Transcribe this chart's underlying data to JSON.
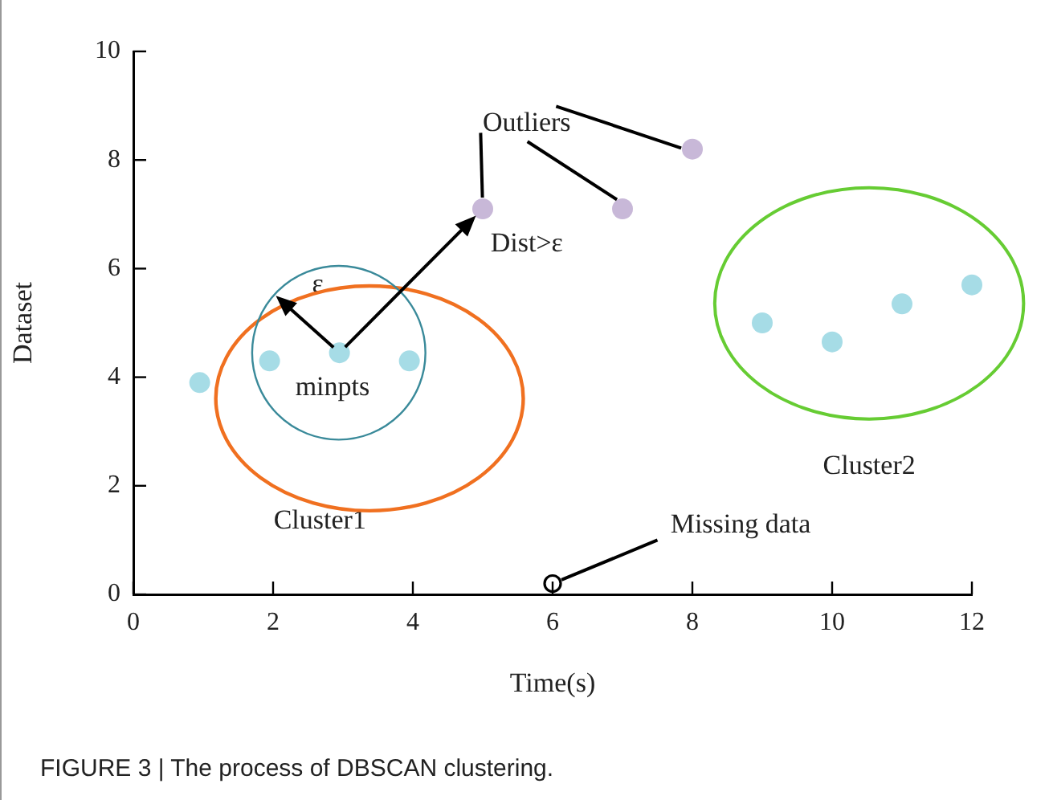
{
  "chart_data": {
    "type": "scatter",
    "xlabel": "Time(s)",
    "ylabel": "Dataset",
    "xlim": [
      0,
      12
    ],
    "xticks": [
      0,
      2,
      4,
      6,
      8,
      10,
      12
    ],
    "ylim": [
      0,
      10
    ],
    "yticks": [
      0,
      2,
      4,
      6,
      8,
      10
    ],
    "grid": false,
    "legend": false,
    "marker": "circle",
    "series": [
      {
        "color": "#a6dce6",
        "x": [
          0.95,
          1.95,
          2.95,
          3.95,
          9,
          10,
          11,
          12
        ],
        "values": [
          3.9,
          4.3,
          4.45,
          4.3,
          5,
          4.65,
          5.35,
          5.7
        ]
      },
      {
        "color": "#c8b8d8",
        "x": [
          5,
          7,
          8
        ],
        "values": [
          7.1,
          7.1,
          8.2
        ]
      },
      {
        "color": "#000000",
        "x": [
          6
        ],
        "values": [
          0.2
        ]
      }
    ],
    "annotations": [
      {
        "text": "Outliers",
        "x": 5,
        "y": 7.1
      },
      {
        "text": "Dist>ε",
        "x": 5,
        "y": 7.1
      },
      {
        "text": "ε",
        "x": 2.95,
        "y": 4.45
      },
      "minpts",
      "Cluster1",
      "Cluster2",
      {
        "text": "Missing data",
        "x": 6,
        "y": 0.2
      },
      "FIGURE 3 | The process of DBSCAN clustering."
    ]
  }
}
